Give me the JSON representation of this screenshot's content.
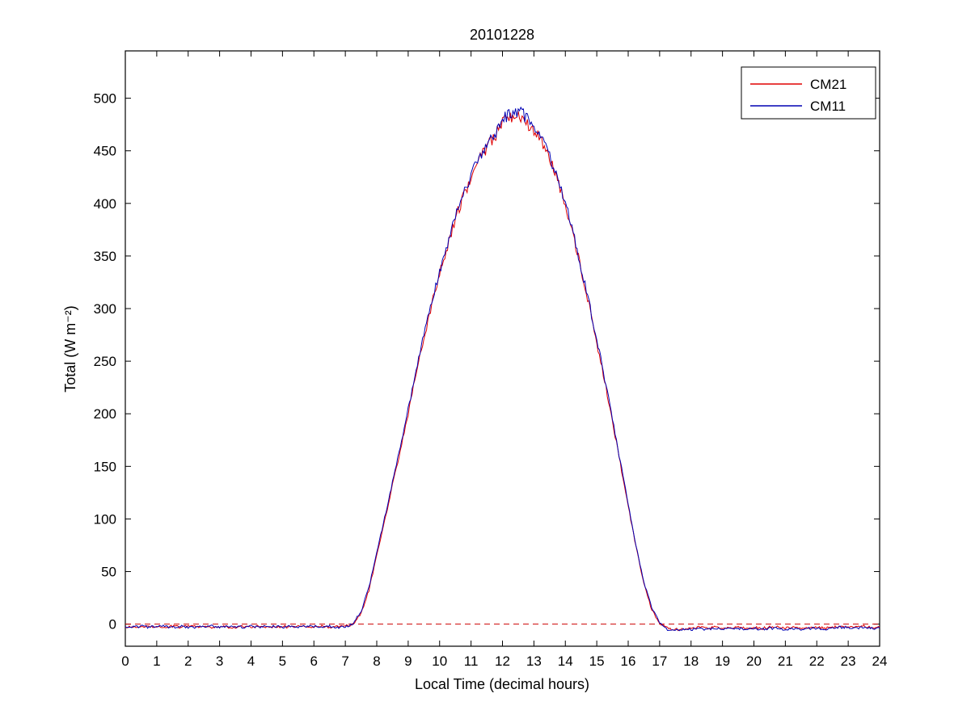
{
  "chart_data": {
    "type": "line",
    "title": "20101228",
    "xlabel": "Local Time (decimal hours)",
    "ylabel": "Total (W m⁻²)",
    "xlim": [
      0,
      24
    ],
    "ylim": [
      -21,
      545
    ],
    "xticks": [
      0,
      1,
      2,
      3,
      4,
      5,
      6,
      7,
      8,
      9,
      10,
      11,
      12,
      13,
      14,
      15,
      16,
      17,
      18,
      19,
      20,
      21,
      22,
      23,
      24
    ],
    "yticks": [
      0,
      50,
      100,
      150,
      200,
      250,
      300,
      350,
      400,
      450,
      500
    ],
    "grid": false,
    "legend_position": "top-right",
    "background_color": "#ffffff",
    "zero_line": {
      "color": "#cc0000",
      "style": "dashed",
      "y": 0
    },
    "noise_amplitude": {
      "night": 1.2,
      "relative_day": 0.013
    },
    "x": [
      0,
      0.25,
      0.5,
      0.75,
      1,
      1.25,
      1.5,
      1.75,
      2,
      2.25,
      2.5,
      2.75,
      3,
      3.25,
      3.5,
      3.75,
      4,
      4.25,
      4.5,
      4.75,
      5,
      5.25,
      5.5,
      5.75,
      6,
      6.25,
      6.5,
      6.75,
      7,
      7.25,
      7.5,
      7.75,
      8,
      8.25,
      8.5,
      8.75,
      9,
      9.25,
      9.5,
      9.75,
      10,
      10.25,
      10.5,
      10.75,
      11,
      11.25,
      11.5,
      11.75,
      12,
      12.25,
      12.5,
      12.75,
      13,
      13.25,
      13.5,
      13.75,
      14,
      14.25,
      14.5,
      14.75,
      15,
      15.25,
      15.5,
      15.75,
      16,
      16.25,
      16.5,
      16.75,
      17,
      17.25,
      17.5,
      17.75,
      18,
      18.25,
      18.5,
      18.75,
      19,
      19.25,
      19.5,
      19.75,
      20,
      20.25,
      20.5,
      20.75,
      21,
      21.25,
      21.5,
      21.75,
      22,
      22.25,
      22.5,
      22.75,
      23,
      23.25,
      23.5,
      23.75,
      24
    ],
    "series": [
      {
        "name": "CM21",
        "color": "#e00000",
        "values": [
          -3,
          -2,
          -3,
          -2,
          -3,
          -3,
          -2,
          -3,
          -2,
          -2,
          -3,
          -3,
          -2,
          -3,
          -3,
          -2,
          -3,
          -2,
          -3,
          -3,
          -2,
          -3,
          -2,
          -3,
          -3,
          -2,
          -3,
          -2,
          -2,
          0,
          10,
          32,
          65,
          98,
          132,
          166,
          200,
          238,
          272,
          304,
          333,
          358,
          386,
          406,
          424,
          441,
          453,
          463,
          477,
          481,
          486,
          478,
          470,
          457,
          442,
          422,
          398,
          370,
          338,
          304,
          268,
          232,
          193,
          152,
          112,
          73,
          38,
          14,
          1,
          -4,
          -5,
          -5,
          -4,
          -3,
          -4,
          -3,
          -4,
          -3,
          -3,
          -4,
          -3,
          -4,
          -3,
          -3,
          -4,
          -3,
          -4,
          -3,
          -3,
          -4,
          -3,
          -2,
          -2,
          -3,
          -2,
          -3,
          -3
        ]
      },
      {
        "name": "CM11",
        "color": "#0000b4",
        "values": [
          -2,
          -3,
          -2,
          -3,
          -2,
          -2,
          -3,
          -2,
          -3,
          -3,
          -2,
          -2,
          -3,
          -2,
          -2,
          -3,
          -2,
          -3,
          -2,
          -2,
          -3,
          -2,
          -3,
          -2,
          -2,
          -3,
          -2,
          -3,
          -3,
          1,
          12,
          35,
          68,
          101,
          135,
          169,
          204,
          241,
          275,
          307,
          336,
          361,
          389,
          409,
          427,
          444,
          456,
          466,
          480,
          484,
          489,
          481,
          472,
          460,
          444,
          424,
          400,
          372,
          340,
          306,
          270,
          234,
          195,
          154,
          114,
          75,
          40,
          15,
          2,
          -5,
          -6,
          -5,
          -5,
          -4,
          -5,
          -4,
          -5,
          -4,
          -4,
          -5,
          -4,
          -5,
          -4,
          -4,
          -5,
          -4,
          -5,
          -4,
          -4,
          -5,
          -4,
          -3,
          -3,
          -4,
          -3,
          -4,
          -4
        ]
      }
    ]
  }
}
